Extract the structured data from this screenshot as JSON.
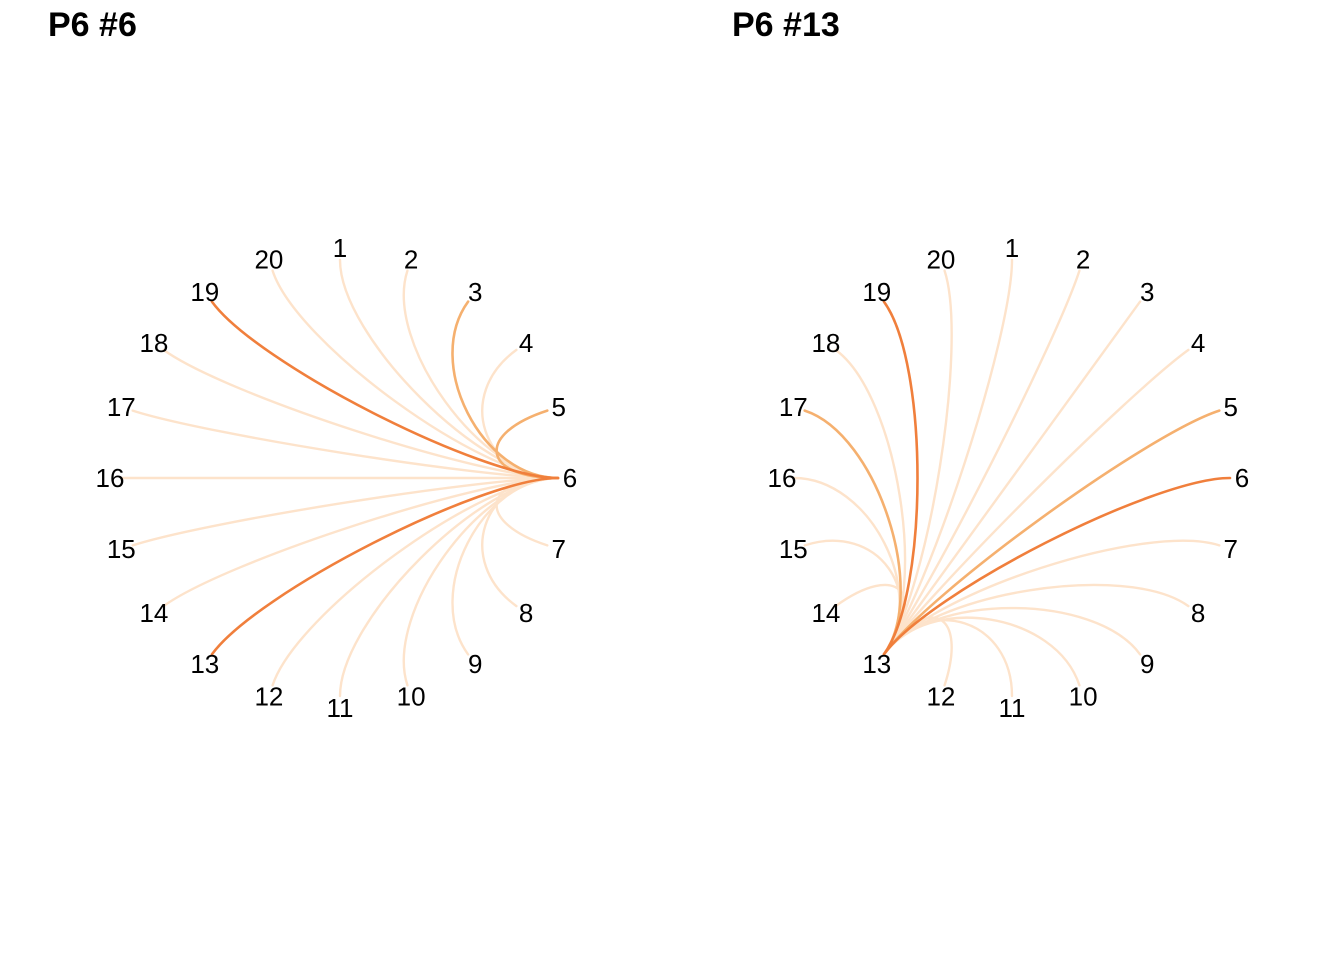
{
  "panels": [
    {
      "title": "P6 #6",
      "focus": "6",
      "nodes": [
        "1",
        "2",
        "3",
        "4",
        "5",
        "6",
        "7",
        "8",
        "9",
        "10",
        "11",
        "12",
        "13",
        "14",
        "15",
        "16",
        "17",
        "18",
        "19",
        "20"
      ],
      "links": [
        {
          "to": "1",
          "strength": "low"
        },
        {
          "to": "2",
          "strength": "low"
        },
        {
          "to": "3",
          "strength": "medium"
        },
        {
          "to": "4",
          "strength": "low"
        },
        {
          "to": "5",
          "strength": "medium"
        },
        {
          "to": "7",
          "strength": "low"
        },
        {
          "to": "8",
          "strength": "low"
        },
        {
          "to": "9",
          "strength": "low"
        },
        {
          "to": "10",
          "strength": "low"
        },
        {
          "to": "11",
          "strength": "low"
        },
        {
          "to": "12",
          "strength": "low"
        },
        {
          "to": "13",
          "strength": "high"
        },
        {
          "to": "14",
          "strength": "low"
        },
        {
          "to": "15",
          "strength": "low"
        },
        {
          "to": "16",
          "strength": "low"
        },
        {
          "to": "17",
          "strength": "low"
        },
        {
          "to": "18",
          "strength": "low"
        },
        {
          "to": "19",
          "strength": "high"
        },
        {
          "to": "20",
          "strength": "low"
        }
      ]
    },
    {
      "title": "P6 #13",
      "focus": "13",
      "nodes": [
        "1",
        "2",
        "3",
        "4",
        "5",
        "6",
        "7",
        "8",
        "9",
        "10",
        "11",
        "12",
        "13",
        "14",
        "15",
        "16",
        "17",
        "18",
        "19",
        "20"
      ],
      "links": [
        {
          "to": "1",
          "strength": "low"
        },
        {
          "to": "2",
          "strength": "low"
        },
        {
          "to": "3",
          "strength": "low"
        },
        {
          "to": "4",
          "strength": "low"
        },
        {
          "to": "5",
          "strength": "medium"
        },
        {
          "to": "6",
          "strength": "high"
        },
        {
          "to": "7",
          "strength": "low"
        },
        {
          "to": "8",
          "strength": "low"
        },
        {
          "to": "9",
          "strength": "low"
        },
        {
          "to": "10",
          "strength": "low"
        },
        {
          "to": "11",
          "strength": "low"
        },
        {
          "to": "12",
          "strength": "low"
        },
        {
          "to": "14",
          "strength": "low"
        },
        {
          "to": "15",
          "strength": "low"
        },
        {
          "to": "16",
          "strength": "low"
        },
        {
          "to": "17",
          "strength": "medium"
        },
        {
          "to": "18",
          "strength": "low"
        },
        {
          "to": "19",
          "strength": "high"
        },
        {
          "to": "20",
          "strength": "low"
        }
      ]
    }
  ],
  "colors": {
    "high": "#f07f3c",
    "medium": "#f5b06f",
    "low": "#fde3cb",
    "label": "#000000"
  }
}
